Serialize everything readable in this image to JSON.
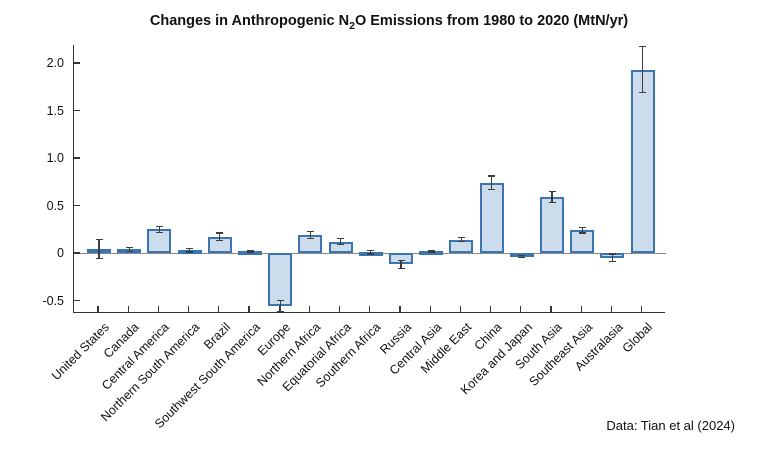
{
  "figure": {
    "title": {
      "pre": "Changes in Anthropogenic N",
      "sub": "2",
      "post": "O Emissions from 1980 to 2020 (MtN/yr)"
    },
    "caption": "Data: Tian et al (2024)"
  },
  "chart_data": {
    "type": "bar",
    "title": "Changes in Anthropogenic N2O Emissions from 1980 to 2020 (MtN/yr)",
    "xlabel": "",
    "ylabel": "",
    "caption": "Data: Tian et al (2024)",
    "categories": [
      "United States",
      "Canada",
      "Central America",
      "Northern South America",
      "Brazil",
      "Southwest South America",
      "Europe",
      "Northern Africa",
      "Equatorial Africa",
      "Southern Africa",
      "Russia",
      "Central Asia",
      "Middle East",
      "China",
      "Korea and Japan",
      "South Asia",
      "Southeast Asia",
      "Australasia",
      "Global"
    ],
    "values": [
      0.04,
      0.04,
      0.25,
      0.03,
      0.17,
      0.02,
      -0.56,
      0.19,
      0.12,
      0.01,
      -0.12,
      0.02,
      0.14,
      0.74,
      -0.04,
      0.59,
      0.24,
      -0.05,
      1.93
    ],
    "errors": [
      0.1,
      0.02,
      0.03,
      0.02,
      0.04,
      0.01,
      0.06,
      0.04,
      0.03,
      0.02,
      0.04,
      0.01,
      0.02,
      0.07,
      0.01,
      0.06,
      0.03,
      0.04,
      0.24
    ],
    "ylim": [
      -0.63,
      2.19
    ],
    "yticks": [
      -0.5,
      0,
      0.5,
      1.0,
      1.5,
      2.0
    ],
    "ytick_labels": [
      "-0.5",
      "0",
      "0.5",
      "1.0",
      "1.5",
      "2.0"
    ],
    "grid": false,
    "legend_position": "none",
    "error_bars": true,
    "colors": {
      "bar_fill": "#cddcec",
      "bar_stroke": "#3b75af",
      "error_bar": "#3d3d3d",
      "axis": "#333333",
      "zero_line": "#8a8a8a"
    }
  }
}
